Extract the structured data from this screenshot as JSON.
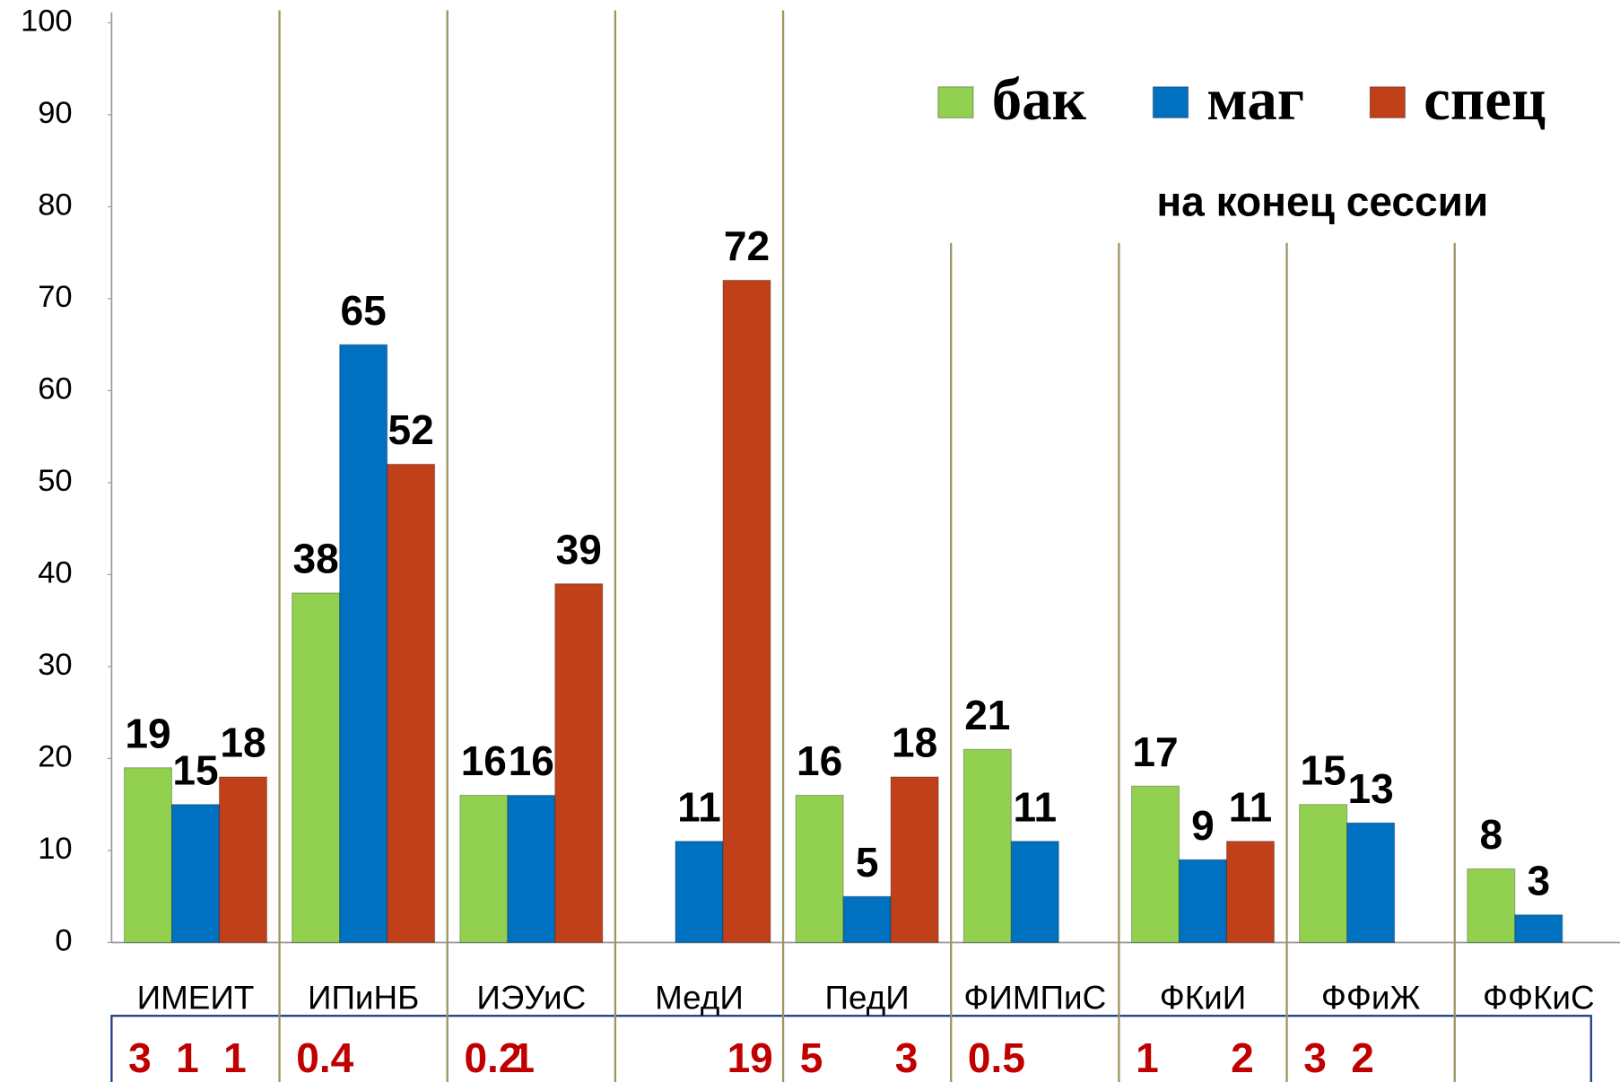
{
  "chart_data": {
    "type": "bar",
    "annotation": "на конец сессии",
    "categories": [
      "ИМЕИТ",
      "ИПиНБ",
      "ИЭУиС",
      "МедИ",
      "ПедИ",
      "ФИМПиС",
      "ФКиИ",
      "ФФиЖ",
      "ФФКиС"
    ],
    "series": [
      {
        "name": "бак",
        "color": "#92d050",
        "values": [
          19,
          38,
          16,
          null,
          16,
          21,
          17,
          15,
          8
        ]
      },
      {
        "name": "маг",
        "color": "#0070c0",
        "values": [
          15,
          65,
          16,
          11,
          5,
          11,
          9,
          13,
          3
        ]
      },
      {
        "name": "спец",
        "color": "#c0401a",
        "values": [
          18,
          52,
          39,
          72,
          18,
          null,
          11,
          null,
          null
        ]
      }
    ],
    "bottom_values": [
      [
        3,
        0.4,
        0.2,
        null,
        5,
        0.5,
        1,
        3,
        null
      ],
      [
        1,
        null,
        1,
        null,
        null,
        null,
        null,
        2,
        null
      ],
      [
        1,
        null,
        null,
        19,
        3,
        null,
        2,
        null,
        null
      ]
    ],
    "ylim": [
      0,
      100
    ],
    "yticks": [
      0,
      10,
      20,
      30,
      40,
      50,
      60,
      70,
      80,
      90,
      100
    ],
    "legend": "top-right"
  }
}
